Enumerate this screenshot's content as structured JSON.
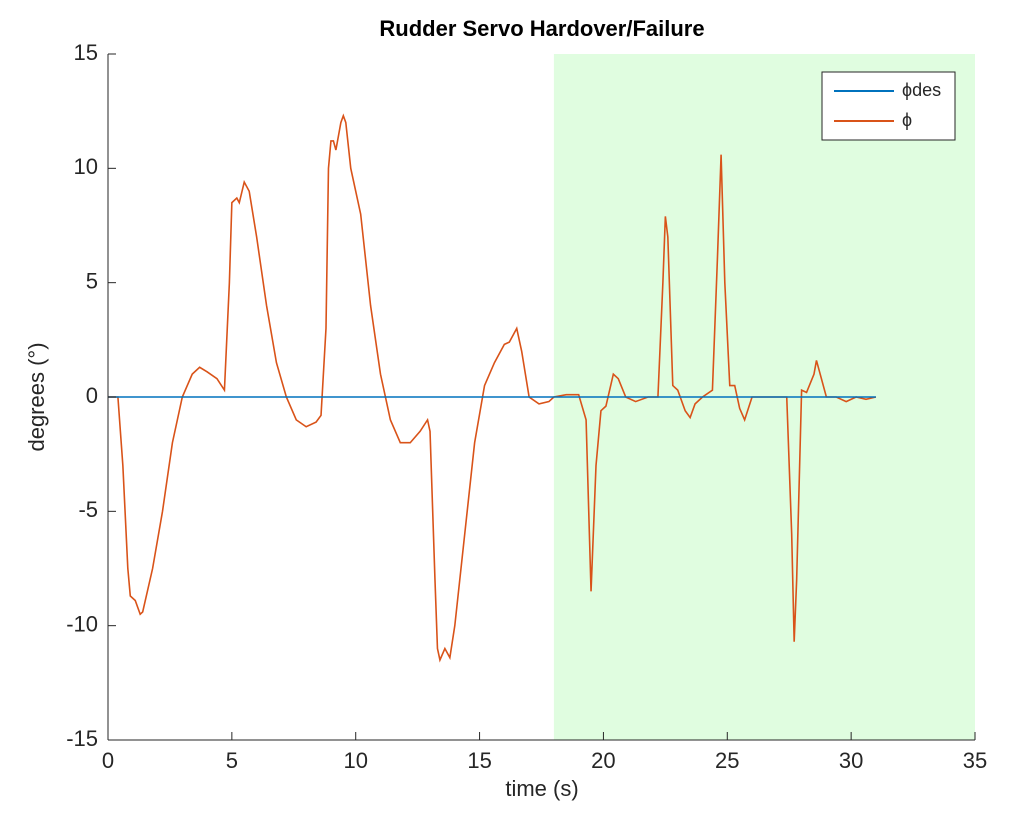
{
  "chart_data": {
    "type": "line",
    "title": "Rudder Servo Hardover/Failure",
    "x_label": "time (s)",
    "y_label": "degrees (°)",
    "xlim": [
      0,
      35
    ],
    "ylim": [
      -15,
      15
    ],
    "xticks": [
      0,
      5,
      10,
      15,
      20,
      25,
      30,
      35
    ],
    "yticks": [
      -15,
      -10,
      -5,
      0,
      5,
      10,
      15
    ],
    "shaded_region": {
      "xlim": [
        18,
        35
      ],
      "color": "#e0fde0"
    },
    "legend": "upper right",
    "series": [
      {
        "name": "ϕdes",
        "color": "#0072bd",
        "x": [
          0,
          31
        ],
        "values": [
          0,
          0
        ]
      },
      {
        "name": "ϕ",
        "color": "#d95319",
        "x": [
          0,
          0.4,
          0.6,
          0.8,
          0.9,
          1.1,
          1.3,
          1.4,
          1.8,
          2.2,
          2.6,
          3.0,
          3.4,
          3.7,
          4.0,
          4.4,
          4.7,
          4.9,
          5.0,
          5.2,
          5.3,
          5.5,
          5.7,
          6.0,
          6.4,
          6.8,
          7.2,
          7.6,
          8.0,
          8.4,
          8.6,
          8.8,
          8.9,
          9.0,
          9.1,
          9.2,
          9.4,
          9.5,
          9.6,
          9.8,
          10.0,
          10.2,
          10.6,
          11.0,
          11.4,
          11.8,
          12.2,
          12.6,
          12.9,
          13.0,
          13.2,
          13.3,
          13.4,
          13.6,
          13.8,
          14.0,
          14.4,
          14.8,
          15.2,
          15.6,
          16.0,
          16.2,
          16.4,
          16.5,
          16.7,
          17.0,
          17.4,
          17.8,
          18.0,
          18.5,
          19.0,
          19.3,
          19.5,
          19.7,
          19.9,
          20.1,
          20.4,
          20.6,
          20.9,
          21.3,
          21.8,
          22.2,
          22.4,
          22.5,
          22.6,
          22.8,
          23.0,
          23.3,
          23.5,
          23.7,
          24.0,
          24.4,
          24.6,
          24.75,
          24.9,
          25.1,
          25.3,
          25.5,
          25.7,
          26.0,
          26.4,
          27.0,
          27.4,
          27.6,
          27.7,
          27.8,
          28.0,
          28.2,
          28.5,
          28.6,
          28.8,
          29.0,
          29.4,
          29.8,
          30.2,
          30.6,
          31.0
        ],
        "values": [
          0,
          0,
          -3,
          -7.5,
          -8.7,
          -8.9,
          -9.5,
          -9.4,
          -7.5,
          -5,
          -2,
          0,
          1,
          1.3,
          1.1,
          0.8,
          0.3,
          5,
          8.5,
          8.7,
          8.5,
          9.4,
          9,
          7,
          4,
          1.5,
          0,
          -1,
          -1.3,
          -1.1,
          -0.8,
          3,
          10,
          11.2,
          11.2,
          10.8,
          12,
          12.3,
          12,
          10,
          9,
          8,
          4,
          1,
          -1,
          -2,
          -2,
          -1.5,
          -1,
          -1.5,
          -8,
          -11,
          -11.5,
          -11,
          -11.4,
          -10,
          -6,
          -2,
          0.5,
          1.5,
          2.3,
          2.4,
          2.8,
          3,
          2,
          0,
          -0.3,
          -0.2,
          0,
          0.1,
          0.1,
          -1,
          -8.5,
          -3,
          -0.6,
          -0.4,
          1,
          0.8,
          0,
          -0.2,
          0,
          0,
          5,
          7.9,
          7,
          0.5,
          0.3,
          -0.6,
          -0.9,
          -0.3,
          0,
          0.3,
          6,
          10.6,
          5,
          0.5,
          0.5,
          -0.5,
          -1,
          0,
          0,
          0,
          0,
          -6,
          -10.7,
          -8,
          0.3,
          0.2,
          1,
          1.6,
          0.8,
          0,
          0,
          -0.2,
          0,
          -0.1,
          0
        ]
      }
    ]
  }
}
